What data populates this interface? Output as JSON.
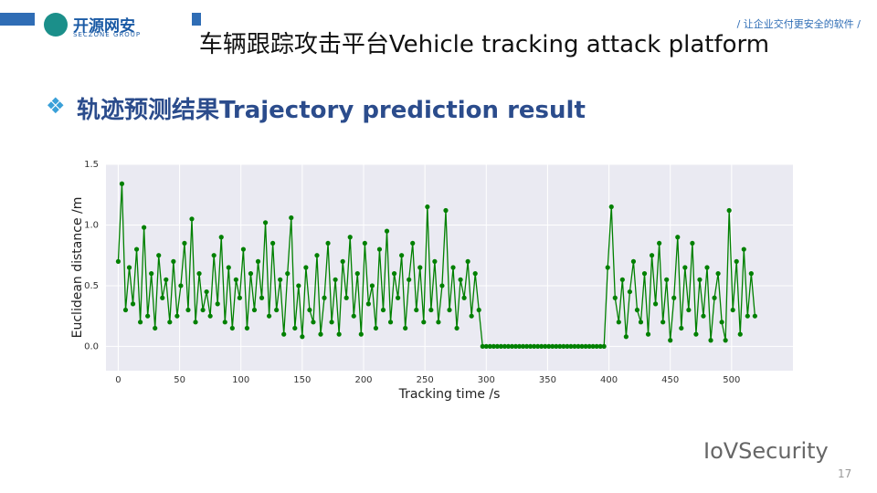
{
  "slide": {
    "logo": "开源网安",
    "logo_sub": "SECZONE GROUP",
    "slogan": "/ 让企业交付更安全的软件 /",
    "title": "车辆跟踪攻击平台Vehicle tracking attack platform",
    "subtitle": "轨迹预测结果Trajectory prediction result",
    "watermark": "IoVSecurity",
    "page": "17"
  },
  "chart_data": {
    "type": "line",
    "xlabel": "Tracking time /s",
    "ylabel": "Euclidean distance /m",
    "color": "#008000",
    "grid": true,
    "xlim": [
      -10,
      550
    ],
    "ylim": [
      -0.2,
      1.5
    ],
    "xticks": [
      0,
      50,
      100,
      150,
      200,
      250,
      300,
      350,
      400,
      450,
      500
    ],
    "yticks": [
      {
        "value": 0,
        "label": "0.0"
      },
      {
        "value": 0.5,
        "label": "0.5"
      },
      {
        "value": 1,
        "label": "1.0"
      },
      {
        "value": 1.5,
        "label": "1.5"
      }
    ],
    "x": [
      0,
      3,
      6,
      9,
      12,
      15,
      18,
      21,
      24,
      27,
      30,
      33,
      36,
      39,
      42,
      45,
      48,
      51,
      54,
      57,
      60,
      63,
      66,
      69,
      72,
      75,
      78,
      81,
      84,
      87,
      90,
      93,
      96,
      99,
      102,
      105,
      108,
      111,
      114,
      117,
      120,
      123,
      126,
      129,
      132,
      135,
      138,
      141,
      144,
      147,
      150,
      153,
      156,
      159,
      162,
      165,
      168,
      171,
      174,
      177,
      180,
      183,
      186,
      189,
      192,
      195,
      198,
      201,
      204,
      207,
      210,
      213,
      216,
      219,
      222,
      225,
      228,
      231,
      234,
      237,
      240,
      243,
      246,
      249,
      252,
      255,
      258,
      261,
      264,
      267,
      270,
      273,
      276,
      279,
      282,
      285,
      288,
      291,
      294,
      297,
      300,
      303,
      306,
      309,
      312,
      315,
      318,
      321,
      324,
      327,
      330,
      333,
      336,
      339,
      342,
      345,
      348,
      351,
      354,
      357,
      360,
      363,
      366,
      369,
      372,
      375,
      378,
      381,
      384,
      387,
      390,
      393,
      396,
      399,
      402,
      405,
      408,
      411,
      414,
      417,
      420,
      423,
      426,
      429,
      432,
      435,
      438,
      441,
      444,
      447,
      450,
      453,
      456,
      459,
      462,
      465,
      468,
      471,
      474,
      477,
      480,
      483,
      486,
      489,
      492,
      495,
      498,
      501,
      504,
      507,
      510,
      513,
      516,
      519
    ],
    "values": [
      0.7,
      1.34,
      0.3,
      0.65,
      0.35,
      0.8,
      0.2,
      0.98,
      0.25,
      0.6,
      0.15,
      0.75,
      0.4,
      0.55,
      0.2,
      0.7,
      0.25,
      0.5,
      0.85,
      0.3,
      1.05,
      0.2,
      0.6,
      0.3,
      0.45,
      0.25,
      0.75,
      0.35,
      0.9,
      0.2,
      0.65,
      0.15,
      0.55,
      0.4,
      0.8,
      0.15,
      0.6,
      0.3,
      0.7,
      0.4,
      1.02,
      0.25,
      0.85,
      0.3,
      0.55,
      0.1,
      0.6,
      1.06,
      0.15,
      0.5,
      0.08,
      0.65,
      0.3,
      0.2,
      0.75,
      0.1,
      0.4,
      0.85,
      0.2,
      0.55,
      0.1,
      0.7,
      0.4,
      0.9,
      0.25,
      0.6,
      0.1,
      0.85,
      0.35,
      0.5,
      0.15,
      0.8,
      0.3,
      0.95,
      0.2,
      0.6,
      0.4,
      0.75,
      0.15,
      0.55,
      0.85,
      0.3,
      0.65,
      0.2,
      1.15,
      0.3,
      0.7,
      0.2,
      0.5,
      1.12,
      0.3,
      0.65,
      0.15,
      0.55,
      0.4,
      0.7,
      0.25,
      0.6,
      0.3,
      0,
      0,
      0,
      0,
      0,
      0,
      0,
      0,
      0,
      0,
      0,
      0,
      0,
      0,
      0,
      0,
      0,
      0,
      0,
      0,
      0,
      0,
      0,
      0,
      0,
      0,
      0,
      0,
      0,
      0,
      0,
      0,
      0,
      0,
      0.65,
      1.15,
      0.4,
      0.2,
      0.55,
      0.08,
      0.45,
      0.7,
      0.3,
      0.2,
      0.6,
      0.1,
      0.75,
      0.35,
      0.85,
      0.2,
      0.55,
      0.05,
      0.4,
      0.9,
      0.15,
      0.65,
      0.3,
      0.85,
      0.1,
      0.55,
      0.25,
      0.65,
      0.05,
      0.4,
      0.6,
      0.2,
      0.05,
      1.12,
      0.3,
      0.7,
      0.1,
      0.8,
      0.25,
      0.6,
      0.25
    ]
  }
}
